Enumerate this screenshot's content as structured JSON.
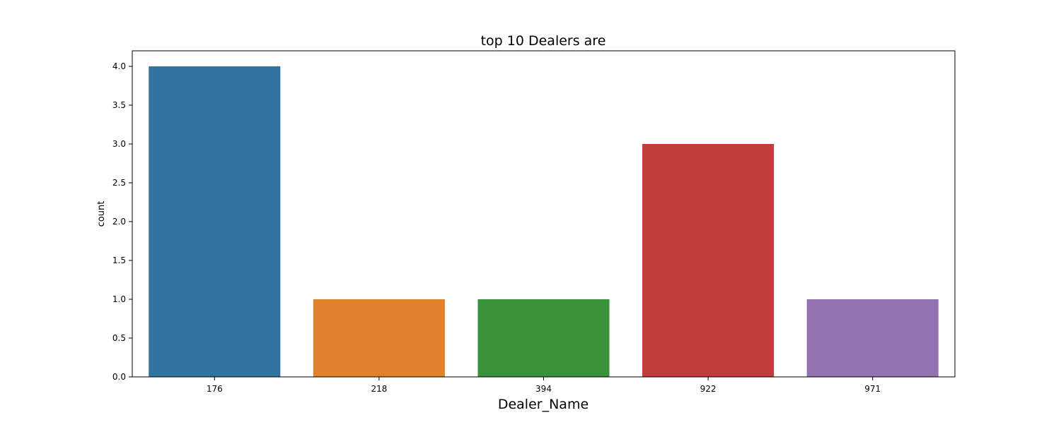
{
  "chart_data": {
    "type": "bar",
    "title": "top 10 Dealers are",
    "xlabel": "Dealer_Name",
    "ylabel": "count",
    "categories": [
      "176",
      "218",
      "394",
      "922",
      "971"
    ],
    "values": [
      4,
      1,
      1,
      3,
      1
    ],
    "colors": [
      "#3274a1",
      "#e1812c",
      "#3a923a",
      "#c03d3e",
      "#9372b2"
    ],
    "ylim": [
      0,
      4.2
    ],
    "yticks": [
      "0.0",
      "0.5",
      "1.0",
      "1.5",
      "2.0",
      "2.5",
      "3.0",
      "3.5",
      "4.0"
    ],
    "grid": false,
    "legend": "none"
  }
}
